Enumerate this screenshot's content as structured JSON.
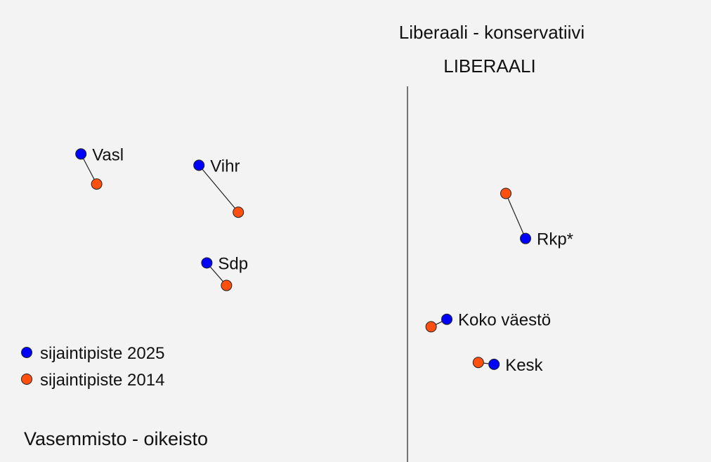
{
  "chart_data": {
    "type": "scatter",
    "title": "Liberaali - konservatiivi",
    "subtitle": "LIBERAALI",
    "axis_label": "Vasemmisto - oikeisto",
    "x_axis_position": 0,
    "legend": {
      "placement": "left",
      "entries": [
        {
          "name": "sijaintipiste 2025",
          "color": "#0000ff"
        },
        {
          "name": "sijaintipiste 2014",
          "color": "#ff5010"
        }
      ]
    },
    "series_colors": {
      "2025": "#0000ff",
      "2014": "#ff5010"
    },
    "xlim": [
      -1,
      0.75
    ],
    "ylim": [
      -1,
      1
    ],
    "points": [
      {
        "label": "Vasl",
        "x2025": -0.83,
        "y2025": 0.64,
        "x2014": -0.79,
        "y2014": 0.48
      },
      {
        "label": "Vihr",
        "x2025": -0.53,
        "y2025": 0.58,
        "x2014": -0.43,
        "y2014": 0.33
      },
      {
        "label": "Sdp",
        "x2025": -0.51,
        "y2025": 0.06,
        "x2014": -0.46,
        "y2014": -0.06
      },
      {
        "label": "Rkp*",
        "x2025": 0.3,
        "y2025": 0.19,
        "x2014": 0.25,
        "y2014": 0.43
      },
      {
        "label": "Koko väestö",
        "x2025": 0.1,
        "y2025": -0.24,
        "x2014": 0.06,
        "y2014": -0.28
      },
      {
        "label": "Kesk",
        "x2025": 0.22,
        "y2025": -0.48,
        "x2014": 0.18,
        "y2014": -0.47
      }
    ]
  }
}
